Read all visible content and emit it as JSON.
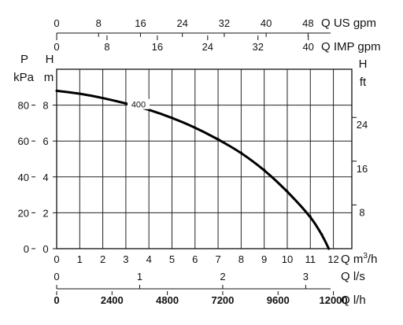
{
  "chart_data": {
    "type": "line",
    "title": "",
    "grid": true,
    "x": [
      0,
      1,
      2,
      3,
      4,
      5,
      6,
      7,
      8,
      9,
      10,
      11,
      11.5,
      11.8
    ],
    "series": [
      {
        "name": "400",
        "values": [
          8.8,
          8.65,
          8.4,
          8.1,
          7.75,
          7.3,
          6.75,
          6.1,
          5.35,
          4.4,
          3.2,
          1.8,
          0.8,
          0
        ]
      }
    ],
    "axes": {
      "bottom": [
        {
          "id": "q_m3h",
          "q": "Q",
          "unit_base": "m",
          "unit_sup": "3",
          "unit_tail": "/h",
          "ticks": [
            "0",
            "1",
            "2",
            "3",
            "4",
            "5",
            "6",
            "7",
            "8",
            "9",
            "10",
            "11",
            "12"
          ],
          "range": [
            0,
            12.8
          ]
        },
        {
          "id": "q_ls",
          "q": "Q",
          "unit": "l/s",
          "ticks": [
            "0",
            "1",
            "2",
            "3"
          ]
        },
        {
          "id": "q_lh",
          "q": "Q",
          "unit": "l/h",
          "ticks": [
            "0",
            "2400",
            "4800",
            "7200",
            "9600",
            "12000"
          ]
        }
      ],
      "top": [
        {
          "id": "q_usgpm",
          "q": "Q",
          "unit": "US gpm",
          "ticks": [
            "0",
            "8",
            "16",
            "24",
            "32",
            "40",
            "48"
          ]
        },
        {
          "id": "q_impgpm",
          "q": "Q",
          "unit": "IMP gpm",
          "ticks": [
            "0",
            "8",
            "16",
            "24",
            "32",
            "40"
          ]
        }
      ],
      "left": [
        {
          "id": "p_kpa",
          "symbol": "P",
          "unit": "kPa",
          "ticks": [
            "0",
            "20",
            "40",
            "60",
            "80"
          ]
        },
        {
          "id": "h_m",
          "symbol": "H",
          "unit": "m",
          "ticks": [
            "0",
            "2",
            "4",
            "6",
            "8"
          ],
          "range": [
            0,
            10
          ]
        }
      ],
      "right": [
        {
          "id": "h_ft",
          "symbol": "H",
          "unit": "ft",
          "ticks": [
            "8",
            "16",
            "24"
          ]
        }
      ]
    },
    "curve_label": "400"
  }
}
